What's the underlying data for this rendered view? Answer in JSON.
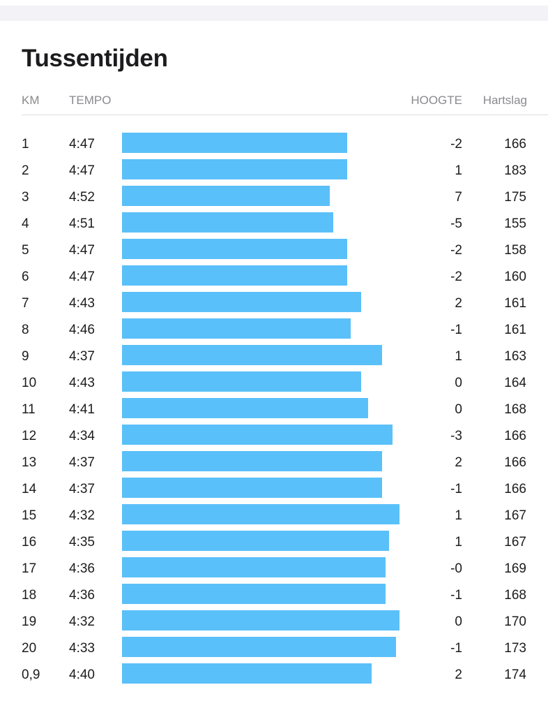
{
  "section": {
    "title": "Tussentijden"
  },
  "columns": {
    "km": "KM",
    "tempo": "TEMPO",
    "hoogte": "HOOGTE",
    "hartslag": "Hartslag"
  },
  "bar_color": "#5ac0f9",
  "splits": [
    {
      "km": "1",
      "tempo": "4:47",
      "hoogte": "-2",
      "hartslag": "166",
      "pace_seconds": 287
    },
    {
      "km": "2",
      "tempo": "4:47",
      "hoogte": "1",
      "hartslag": "183",
      "pace_seconds": 287
    },
    {
      "km": "3",
      "tempo": "4:52",
      "hoogte": "7",
      "hartslag": "175",
      "pace_seconds": 292
    },
    {
      "km": "4",
      "tempo": "4:51",
      "hoogte": "-5",
      "hartslag": "155",
      "pace_seconds": 291
    },
    {
      "km": "5",
      "tempo": "4:47",
      "hoogte": "-2",
      "hartslag": "158",
      "pace_seconds": 287
    },
    {
      "km": "6",
      "tempo": "4:47",
      "hoogte": "-2",
      "hartslag": "160",
      "pace_seconds": 287
    },
    {
      "km": "7",
      "tempo": "4:43",
      "hoogte": "2",
      "hartslag": "161",
      "pace_seconds": 283
    },
    {
      "km": "8",
      "tempo": "4:46",
      "hoogte": "-1",
      "hartslag": "161",
      "pace_seconds": 286
    },
    {
      "km": "9",
      "tempo": "4:37",
      "hoogte": "1",
      "hartslag": "163",
      "pace_seconds": 277
    },
    {
      "km": "10",
      "tempo": "4:43",
      "hoogte": "0",
      "hartslag": "164",
      "pace_seconds": 283
    },
    {
      "km": "11",
      "tempo": "4:41",
      "hoogte": "0",
      "hartslag": "168",
      "pace_seconds": 281
    },
    {
      "km": "12",
      "tempo": "4:34",
      "hoogte": "-3",
      "hartslag": "166",
      "pace_seconds": 274
    },
    {
      "km": "13",
      "tempo": "4:37",
      "hoogte": "2",
      "hartslag": "166",
      "pace_seconds": 277
    },
    {
      "km": "14",
      "tempo": "4:37",
      "hoogte": "-1",
      "hartslag": "166",
      "pace_seconds": 277
    },
    {
      "km": "15",
      "tempo": "4:32",
      "hoogte": "1",
      "hartslag": "167",
      "pace_seconds": 272
    },
    {
      "km": "16",
      "tempo": "4:35",
      "hoogte": "1",
      "hartslag": "167",
      "pace_seconds": 275
    },
    {
      "km": "17",
      "tempo": "4:36",
      "hoogte": "-0",
      "hartslag": "169",
      "pace_seconds": 276
    },
    {
      "km": "18",
      "tempo": "4:36",
      "hoogte": "-1",
      "hartslag": "168",
      "pace_seconds": 276
    },
    {
      "km": "19",
      "tempo": "4:32",
      "hoogte": "0",
      "hartslag": "170",
      "pace_seconds": 272
    },
    {
      "km": "20",
      "tempo": "4:33",
      "hoogte": "-1",
      "hartslag": "173",
      "pace_seconds": 273
    },
    {
      "km": "0,9",
      "tempo": "4:40",
      "hoogte": "2",
      "hartslag": "174",
      "pace_seconds": 280
    }
  ]
}
